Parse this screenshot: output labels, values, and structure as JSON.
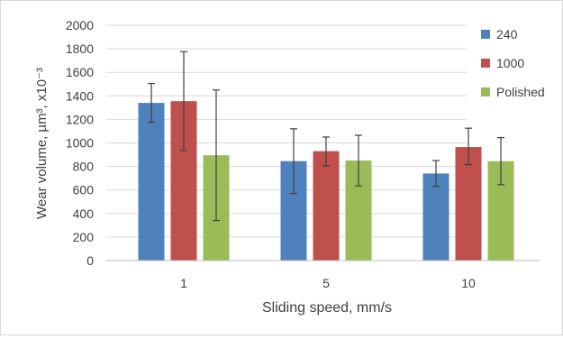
{
  "chart_data": {
    "type": "bar",
    "title": "",
    "xlabel": "Sliding speed, mm/s",
    "ylabel": "Wear volume, µm³, x10⁻³",
    "categories": [
      "1",
      "5",
      "10"
    ],
    "ylim": [
      0,
      2000
    ],
    "yticks": [
      0,
      200,
      400,
      600,
      800,
      1000,
      1200,
      1400,
      1600,
      1800,
      2000
    ],
    "grid": "horizontal",
    "legend_position": "right",
    "series": [
      {
        "name": "240",
        "color": "#4f81bd",
        "values": [
          1340,
          845,
          740
        ],
        "err_low": [
          1175,
          570,
          630
        ],
        "err_high": [
          1505,
          1120,
          850
        ]
      },
      {
        "name": "1000",
        "color": "#c0504d",
        "values": [
          1355,
          930,
          965
        ],
        "err_low": [
          935,
          805,
          815
        ],
        "err_high": [
          1775,
          1050,
          1125
        ]
      },
      {
        "name": "Polished",
        "color": "#9bbb59",
        "values": [
          895,
          850,
          845
        ],
        "err_low": [
          340,
          635,
          645
        ],
        "err_high": [
          1450,
          1065,
          1045
        ]
      }
    ]
  }
}
